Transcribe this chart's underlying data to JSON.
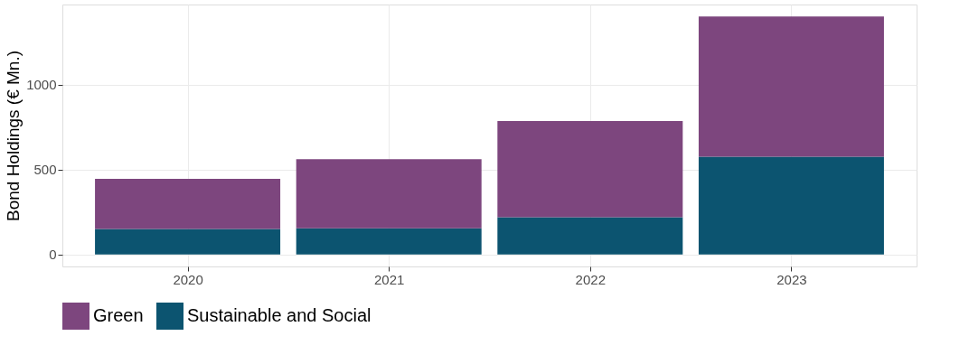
{
  "chart_data": {
    "type": "bar",
    "stacked": true,
    "ylabel": "Bond Holdings (€ Mn.)",
    "categories": [
      "2020",
      "2021",
      "2022",
      "2023"
    ],
    "series": [
      {
        "name": "Sustainable and Social",
        "color": "#0c5470",
        "values": [
          150,
          155,
          220,
          575
        ]
      },
      {
        "name": "Green",
        "color": "#7d467e",
        "values": [
          295,
          405,
          565,
          825
        ]
      }
    ],
    "ylim": [
      -70,
      1470
    ],
    "yticks": [
      0,
      500,
      1000
    ],
    "grid": true,
    "legend": "bottom"
  }
}
